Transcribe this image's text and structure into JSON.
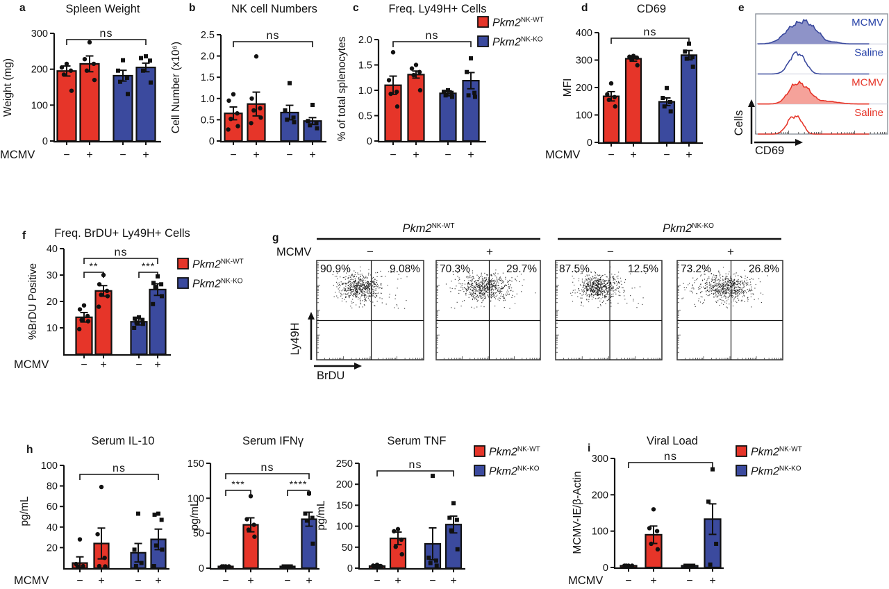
{
  "colors": {
    "accent_red": "#E63529",
    "accent_blue": "#3B4A9E",
    "hist_fill_blue": "#8E93C8",
    "hist_fill_red": "#F5A29A",
    "hist_label_blue": "#2742A8",
    "hist_label_red": "#E63529",
    "ink": "#111111"
  },
  "legend": {
    "entries": [
      {
        "gene": "Pkm2",
        "sup": "NK-WT",
        "color": "#E63529",
        "point_marker": "circle"
      },
      {
        "gene": "Pkm2",
        "sup": "NK-KO",
        "color": "#3B4A9E",
        "point_marker": "square"
      }
    ]
  },
  "chart_data": [
    {
      "id": "a",
      "panel_letter": "a",
      "type": "bar",
      "title": "Spleen Weight",
      "ylabel": "Weight (mg)",
      "ylim": [
        0,
        300
      ],
      "yticks": [
        {
          "v": 0,
          "label": "0"
        },
        {
          "v": 100,
          "label": "100"
        },
        {
          "v": 200,
          "label": "200"
        },
        {
          "v": 300,
          "label": "300"
        }
      ],
      "xaxis_label": "MCMV",
      "categories": [
        "−",
        "+",
        "−",
        "+"
      ],
      "group_colors": [
        "red",
        "red",
        "blue",
        "blue"
      ],
      "values": [
        195,
        215,
        182,
        205
      ],
      "errors": [
        14,
        22,
        15,
        12
      ],
      "points": [
        [
          215,
          205,
          196,
          185,
          140
        ],
        [
          275,
          228,
          215,
          196,
          170
        ],
        [
          225,
          196,
          176,
          165,
          131
        ],
        [
          236,
          231,
          224,
          196,
          163
        ]
      ],
      "annotations": [
        {
          "label": "ns",
          "from": 0,
          "to": 3
        }
      ]
    },
    {
      "id": "b",
      "panel_letter": "b",
      "type": "bar",
      "title": "NK cell Numbers",
      "ylabel": "Cell Number (x10⁶)",
      "ylim": [
        0,
        2.5
      ],
      "yticks": [
        {
          "v": 0,
          "label": "0"
        },
        {
          "v": 0.5,
          "label": "0.5"
        },
        {
          "v": 1.0,
          "label": "1.0"
        },
        {
          "v": 1.5,
          "label": "1.5"
        },
        {
          "v": 2.0,
          "label": "2.0"
        },
        {
          "v": 2.5,
          "label": "2.5"
        }
      ],
      "categories": [
        "−",
        "+",
        "−",
        "+"
      ],
      "group_colors": [
        "red",
        "red",
        "blue",
        "blue"
      ],
      "values": [
        0.65,
        0.87,
        0.67,
        0.47
      ],
      "errors": [
        0.15,
        0.28,
        0.17,
        0.08
      ],
      "points": [
        [
          1.1,
          0.95,
          0.65,
          0.52,
          0.35,
          0.27
        ],
        [
          1.99,
          1.0,
          0.77,
          0.72,
          0.55,
          0.42
        ],
        [
          1.36,
          0.72,
          0.55,
          0.5,
          0.44
        ],
        [
          0.85,
          0.47,
          0.42,
          0.37,
          0.3
        ]
      ],
      "annotations": [
        {
          "label": "ns",
          "from": 0,
          "to": 3
        }
      ]
    },
    {
      "id": "c",
      "panel_letter": "c",
      "type": "bar",
      "title": "Freq. Ly49H+ Cells",
      "ylabel": "% of total splenocytes",
      "ylim": [
        0,
        2.0
      ],
      "yticks": [
        {
          "v": 0,
          "label": "0"
        },
        {
          "v": 0.5,
          "label": "0.5"
        },
        {
          "v": 1.0,
          "label": "1.0"
        },
        {
          "v": 1.5,
          "label": "1.5"
        },
        {
          "v": 2.0,
          "label": "2.0"
        }
      ],
      "categories": [
        "−",
        "+",
        "−",
        "+"
      ],
      "group_colors": [
        "red",
        "red",
        "blue",
        "blue"
      ],
      "values": [
        1.1,
        1.31,
        0.94,
        1.19
      ],
      "errors": [
        0.18,
        0.07,
        0.05,
        0.16
      ],
      "points": [
        [
          1.75,
          1.2,
          0.97,
          0.93,
          0.68
        ],
        [
          1.5,
          1.43,
          1.36,
          1.3,
          1.0
        ],
        [
          1.0,
          0.97,
          0.95,
          0.9,
          0.87
        ],
        [
          1.63,
          1.36,
          0.95,
          0.9,
          0.87
        ]
      ],
      "annotations": [
        {
          "label": "ns",
          "from": 0,
          "to": 3
        }
      ],
      "show_legend": true
    },
    {
      "id": "d",
      "panel_letter": "d",
      "type": "bar",
      "title": "CD69",
      "ylabel": "MFI",
      "ylim": [
        0,
        400
      ],
      "yticks": [
        {
          "v": 0,
          "label": "0"
        },
        {
          "v": 100,
          "label": "100"
        },
        {
          "v": 200,
          "label": "200"
        },
        {
          "v": 300,
          "label": "300"
        },
        {
          "v": 400,
          "label": "400"
        }
      ],
      "xaxis_label": "MCMV",
      "categories": [
        "−",
        "+",
        "−",
        "+"
      ],
      "group_colors": [
        "red",
        "red",
        "blue",
        "blue"
      ],
      "values": [
        168,
        305,
        148,
        318
      ],
      "errors": [
        17,
        9,
        14,
        17
      ],
      "points": [
        [
          215,
          175,
          165,
          155,
          131
        ],
        [
          315,
          312,
          309,
          304,
          281
        ],
        [
          198,
          162,
          147,
          131,
          113
        ],
        [
          360,
          331,
          311,
          305,
          276
        ]
      ],
      "annotations": [
        {
          "label": "ns",
          "from": 0,
          "to": 3
        }
      ]
    },
    {
      "id": "f",
      "panel_letter": "f",
      "type": "bar",
      "title": "Freq. BrDU+ Ly49H+ Cells",
      "ylabel": "%BrDU Positive",
      "ylim": [
        0,
        40
      ],
      "yticks": [
        {
          "v": 10,
          "label": "10"
        },
        {
          "v": 20,
          "label": "20"
        },
        {
          "v": 30,
          "label": "30"
        },
        {
          "v": 40,
          "label": "40"
        }
      ],
      "xaxis_label": "MCMV",
      "categories": [
        "−",
        "+",
        "−",
        "+"
      ],
      "group_colors": [
        "red",
        "red",
        "blue",
        "blue"
      ],
      "values": [
        14,
        24,
        12.3,
        24.5
      ],
      "errors": [
        1.8,
        2.0,
        1.2,
        2.2
      ],
      "points": [
        [
          18.5,
          17,
          14.5,
          13,
          12.5,
          9.5
        ],
        [
          30,
          26.5,
          24,
          22.5,
          22,
          18
        ],
        [
          14,
          13.5,
          13,
          12,
          11.5,
          10
        ],
        [
          29.5,
          27,
          26.5,
          25.5,
          22,
          19
        ]
      ],
      "annotations": [
        {
          "label": "ns",
          "from": 0,
          "to": 3
        },
        {
          "label": "**",
          "from": 0,
          "to": 1
        },
        {
          "label": "***",
          "from": 2,
          "to": 3
        }
      ],
      "show_legend": true
    },
    {
      "id": "h1",
      "panel_letter": "h",
      "type": "bar",
      "title": "Serum IL-10",
      "ylabel": "pg/mL",
      "ylim": [
        0,
        100
      ],
      "yticks": [
        {
          "v": 20,
          "label": "20"
        },
        {
          "v": 40,
          "label": "40"
        },
        {
          "v": 60,
          "label": "60"
        },
        {
          "v": 80,
          "label": "80"
        },
        {
          "v": 100,
          "label": "100"
        }
      ],
      "xaxis_label": "MCMV",
      "categories": [
        "−",
        "+",
        "−",
        "+"
      ],
      "group_colors": [
        "red",
        "red",
        "blue",
        "blue"
      ],
      "values": [
        5,
        24,
        15,
        28
      ],
      "errors": [
        6,
        15,
        9,
        10
      ],
      "points": [
        [
          28,
          4,
          2,
          1
        ],
        [
          79,
          33,
          10,
          2,
          1
        ],
        [
          53,
          18,
          5,
          2
        ],
        [
          53,
          52,
          47,
          22,
          18,
          2
        ]
      ],
      "annotations": [
        {
          "label": "ns",
          "from": 0,
          "to": 3
        }
      ]
    },
    {
      "id": "h2",
      "type": "bar",
      "title": "Serum IFNγ",
      "ylabel": "pg/mL",
      "ylim": [
        0,
        150
      ],
      "yticks": [
        {
          "v": 0,
          "label": "0"
        },
        {
          "v": 50,
          "label": "50"
        },
        {
          "v": 100,
          "label": "100"
        },
        {
          "v": 150,
          "label": "150"
        }
      ],
      "categories": [
        "−",
        "+",
        "−",
        "+"
      ],
      "group_colors": [
        "red",
        "red",
        "blue",
        "blue"
      ],
      "values": [
        1.5,
        62,
        2,
        70
      ],
      "errors": [
        1,
        10,
        1.5,
        10
      ],
      "points": [
        [
          1,
          1,
          1,
          1
        ],
        [
          103,
          70,
          62,
          55,
          45
        ],
        [
          2,
          2,
          2
        ],
        [
          107,
          78,
          72,
          68,
          35
        ]
      ],
      "annotations": [
        {
          "label": "ns",
          "from": 0,
          "to": 3
        },
        {
          "label": "***",
          "from": 0,
          "to": 1
        },
        {
          "label": "****",
          "from": 2,
          "to": 3
        }
      ]
    },
    {
      "id": "h3",
      "type": "bar",
      "title": "Serum TNF",
      "ylabel": "pg/mL",
      "ylim": [
        0,
        250
      ],
      "yticks": [
        {
          "v": 0,
          "label": "0"
        },
        {
          "v": 50,
          "label": "50"
        },
        {
          "v": 100,
          "label": "100"
        },
        {
          "v": 150,
          "label": "150"
        },
        {
          "v": 200,
          "label": "200"
        },
        {
          "v": 250,
          "label": "250"
        }
      ],
      "categories": [
        "−",
        "+",
        "−",
        "+"
      ],
      "group_colors": [
        "red",
        "red",
        "blue",
        "blue"
      ],
      "values": [
        5,
        71,
        58,
        104
      ],
      "errors": [
        3,
        15,
        38,
        20
      ],
      "points": [
        [
          8,
          6,
          5,
          3,
          2
        ],
        [
          93,
          88,
          68,
          51,
          33
        ],
        [
          220,
          25,
          18,
          12,
          6
        ],
        [
          155,
          120,
          115,
          90,
          45
        ]
      ],
      "annotations": [
        {
          "label": "ns",
          "from": 0,
          "to": 3
        }
      ],
      "show_legend": true
    },
    {
      "id": "i",
      "panel_letter": "i",
      "type": "bar",
      "title": "Viral Load",
      "ylabel": "MCMV-IE/β-Actin",
      "ylim": [
        0,
        300
      ],
      "yticks": [
        {
          "v": 0,
          "label": "0"
        },
        {
          "v": 100,
          "label": "100"
        },
        {
          "v": 200,
          "label": "200"
        },
        {
          "v": 300,
          "label": "300"
        }
      ],
      "xaxis_label": "MCMV",
      "categories": [
        "−",
        "+",
        "−",
        "+"
      ],
      "group_colors": [
        "red",
        "red",
        "blue",
        "blue"
      ],
      "values": [
        2,
        90,
        2,
        133
      ],
      "errors": [
        1.5,
        24,
        1.5,
        42
      ],
      "points": [
        [
          1,
          1,
          1,
          1
        ],
        [
          160,
          108,
          100,
          65,
          50
        ],
        [
          2,
          2,
          2
        ],
        [
          270,
          181,
          65,
          8
        ]
      ],
      "annotations": [
        {
          "label": "ns",
          "from": 0,
          "to": 3
        }
      ],
      "show_legend": true
    },
    {
      "id": "e",
      "panel_letter": "e",
      "type": "flow_histogram",
      "xlabel": "CD69",
      "ylabel": "Cells",
      "rows": [
        {
          "label": "MCMV",
          "color": "blue",
          "filled": true
        },
        {
          "label": "Saline",
          "color": "blue",
          "filled": false
        },
        {
          "label": "MCMV",
          "color": "red",
          "filled": true
        },
        {
          "label": "Saline",
          "color": "red",
          "filled": false
        }
      ]
    },
    {
      "id": "g",
      "panel_letter": "g",
      "type": "flow_scatter",
      "xlabel": "BrDU",
      "ylabel": "Ly49H",
      "row_label": "MCMV",
      "groups": [
        {
          "gene": "Pkm2",
          "sup": "NK-WT",
          "plots": [
            {
              "condition": "−",
              "quadrants": {
                "upper_left": "90.9%",
                "upper_right": "9.08%"
              }
            },
            {
              "condition": "+",
              "quadrants": {
                "upper_left": "70.3%",
                "upper_right": "29.7%"
              }
            }
          ]
        },
        {
          "gene": "Pkm2",
          "sup": "NK-KO",
          "plots": [
            {
              "condition": "−",
              "quadrants": {
                "upper_left": "87.5%",
                "upper_right": "12.5%"
              }
            },
            {
              "condition": "+",
              "quadrants": {
                "upper_left": "73.2%",
                "upper_right": "26.8%"
              }
            }
          ]
        }
      ]
    }
  ]
}
